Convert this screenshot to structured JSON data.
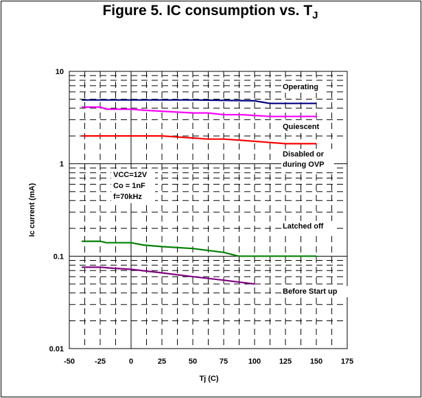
{
  "title": {
    "text": "Figure 5. IC consumption vs. T",
    "subscript": "J"
  },
  "conditions": [
    "VCC=12V",
    "Co = 1nF",
    "f=70kHz"
  ],
  "chart_data": {
    "type": "line",
    "title": "Figure 5. IC consumption vs. TJ",
    "xlabel": "Tj (C)",
    "ylabel": "Ic current (mA)",
    "xlim": [
      -50,
      175
    ],
    "ylim": [
      0.01,
      10
    ],
    "yscale": "log",
    "grid": true,
    "x_ticks": [
      -50,
      -25,
      0,
      25,
      50,
      75,
      100,
      125,
      150,
      175
    ],
    "x_tick_labels": [
      "-50",
      "-25",
      "0",
      "25",
      "50",
      "75",
      "100",
      "125",
      "150",
      "175"
    ],
    "y_ticks": [
      0.01,
      0.1,
      1,
      10
    ],
    "y_tick_labels": [
      "0.01",
      "0.1",
      "1",
      "10"
    ],
    "series": [
      {
        "name": "Operating",
        "color": "#000080",
        "x": [
          -40,
          0,
          50,
          100,
          112,
          150
        ],
        "y": [
          4.9,
          4.9,
          4.9,
          4.8,
          4.5,
          4.5
        ]
      },
      {
        "name": "Quiescent",
        "color": "#ff00ff",
        "x": [
          -40,
          -25,
          -20,
          0,
          10,
          25,
          50,
          62,
          75,
          90,
          112,
          150
        ],
        "y": [
          4.1,
          4.1,
          3.9,
          3.9,
          3.8,
          3.7,
          3.55,
          3.55,
          3.4,
          3.4,
          3.25,
          3.25
        ]
      },
      {
        "name": "Disabled or\nduring OVP",
        "color": "#ff0000",
        "x": [
          -40,
          0,
          25,
          50,
          62,
          75,
          100,
          125,
          150
        ],
        "y": [
          2.0,
          2.0,
          2.0,
          1.9,
          1.85,
          1.85,
          1.75,
          1.65,
          1.65
        ]
      },
      {
        "name": "Latched off",
        "color": "#008000",
        "x": [
          -40,
          -25,
          -20,
          0,
          10,
          25,
          50,
          75,
          87,
          100,
          150
        ],
        "y": [
          0.145,
          0.145,
          0.14,
          0.14,
          0.132,
          0.127,
          0.121,
          0.11,
          0.1,
          0.1,
          0.1
        ]
      },
      {
        "name": "Before Start up",
        "color": "#800080",
        "x": [
          -40,
          -25,
          -15,
          0,
          25,
          50,
          75,
          100
        ],
        "y": [
          0.076,
          0.076,
          0.074,
          0.072,
          0.066,
          0.06,
          0.055,
          0.05
        ]
      }
    ]
  }
}
